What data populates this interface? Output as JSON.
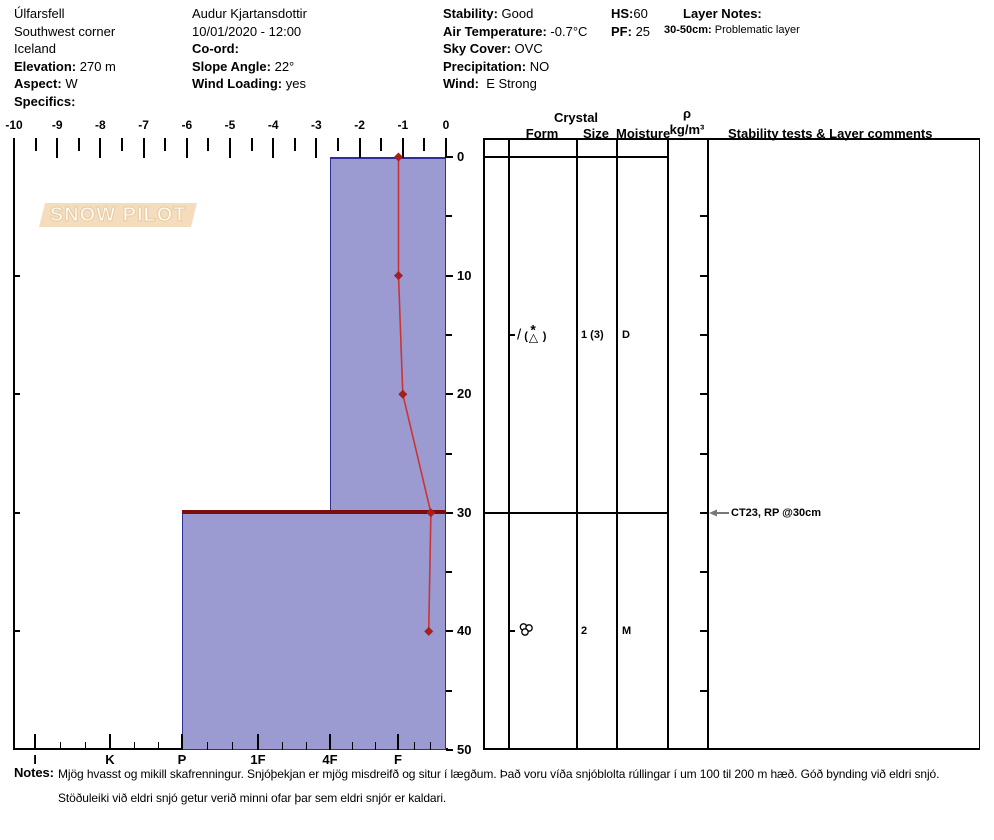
{
  "header": {
    "location": {
      "name": "Úlfarsfell",
      "area": "Southwest corner",
      "country": "Iceland",
      "elevation_label": "Elevation:",
      "elevation_value": "270 m",
      "aspect_label": "Aspect:",
      "aspect_value": "W",
      "specifics_label": "Specifics:"
    },
    "observer": {
      "name": "Audur Kjartansdottir",
      "datetime": "10/01/2020 - 12:00",
      "coord_label": "Co-ord:",
      "slope_label": "Slope Angle:",
      "slope_value": "22°",
      "wind_loading_label": "Wind Loading:",
      "wind_loading_value": "yes"
    },
    "conditions": {
      "stability_label": "Stability:",
      "stability_value": "Good",
      "air_temp_label": "Air Temperature:",
      "air_temp_value": "-0.7°C",
      "sky_label": "Sky Cover:",
      "sky_value": "OVC",
      "precip_label": "Precipitation:",
      "precip_value": "NO",
      "wind_label": "Wind:",
      "wind_value": "E Strong"
    },
    "snowpack": {
      "hs_label": "HS:",
      "hs_value": "60",
      "pf_label": "PF:",
      "pf_value": "25"
    },
    "layer_notes": {
      "label": "Layer Notes:",
      "range": "30-50cm:",
      "text": "Problematic layer"
    }
  },
  "logo": {
    "text": "SNOW PILOT",
    "snowflake_glyph": "❄"
  },
  "axes": {
    "temp_labels": [
      "-10",
      "-9",
      "-8",
      "-7",
      "-6",
      "-5",
      "-4",
      "-3",
      "-2",
      "-1",
      "0"
    ],
    "depth_labels": [
      "0",
      "10",
      "20",
      "30",
      "40",
      "50"
    ],
    "hardness_labels": [
      "I",
      "K",
      "P",
      "1F",
      "4F",
      "F"
    ]
  },
  "panel": {
    "crystal_header": "Crystal",
    "form_header": "Form",
    "size_header": "Size",
    "moisture_header": "Moisture",
    "density_symbol": "ρ",
    "density_unit": "kg/m³",
    "comments_header": "Stability tests & Layer comments",
    "rows": [
      {
        "depth_cm": 15,
        "form": "DF (PP stellar / graupel)",
        "form_icon": "df-with-pp-icon",
        "form_paren_open": "(",
        "form_paren_close": ")",
        "size": "1 (3)",
        "moisture": "D"
      },
      {
        "depth_cm": 40,
        "form": "MF clustered rounds",
        "form_icon": "mf-cluster-icon",
        "size": "2",
        "moisture": "M"
      }
    ],
    "tests": [
      {
        "depth_cm": 30,
        "text": "CT23, RP @30cm"
      }
    ]
  },
  "notes": {
    "label": "Notes:",
    "line1": "Mjög hvasst og mikill skafrenningur. Snjóþekjan er mjög misdreifð og situr í lægðum. Það voru víða snjóblolta rúllingar í um 100 til 200 m hæð.  Góð bynding við eldri snjó.",
    "line2": "Stöðuleiki við eldri snjó getur verið minni ofar þar sem eldri snjór er kaldari."
  },
  "colors": {
    "layer_fill": "#9b9bd2",
    "layer_border": "#2e2e96",
    "temp_line": "#cc3333",
    "temp_marker": "#a81d1d",
    "problem_line": "#7d0d0d",
    "logo_band": "#f5dcbd",
    "snowflake": "#c9d7e2"
  },
  "chart_data": {
    "type": "snow-profile",
    "title": "Snow pit profile (SnowPilot)",
    "temp_axis": {
      "position": "top",
      "unit": "°C",
      "range": [
        -10,
        0
      ],
      "tick_step": 1,
      "minor_step": 0.5
    },
    "depth_axis": {
      "position": "right",
      "unit": "cm",
      "range": [
        0,
        50
      ],
      "tick_step": 10,
      "minor_step": 5
    },
    "hardness_axis": {
      "position": "bottom",
      "categories": [
        "I",
        "K",
        "P",
        "1F",
        "4F",
        "F"
      ]
    },
    "layers": [
      {
        "top_cm": 0,
        "bottom_cm": 30,
        "hardness": "4F",
        "problematic": false
      },
      {
        "top_cm": 30,
        "bottom_cm": 50,
        "hardness": "P",
        "problematic": true
      }
    ],
    "temperature_profile": [
      {
        "depth_cm": 0,
        "temp_c": -1.1
      },
      {
        "depth_cm": 10,
        "temp_c": -1.1
      },
      {
        "depth_cm": 20,
        "temp_c": -1.0
      },
      {
        "depth_cm": 30,
        "temp_c": -0.35
      },
      {
        "depth_cm": 40,
        "temp_c": -0.4
      }
    ],
    "grain_rows": [
      {
        "depth_cm": 15,
        "form": "DF (PP)",
        "size": "1 (3)",
        "moisture": "D"
      },
      {
        "depth_cm": 40,
        "form": "MF",
        "size": "2",
        "moisture": "M"
      }
    ],
    "stability_tests": [
      {
        "depth_cm": 30,
        "result": "CT23, RP @30cm"
      }
    ],
    "legend": "none",
    "grid": "off"
  }
}
